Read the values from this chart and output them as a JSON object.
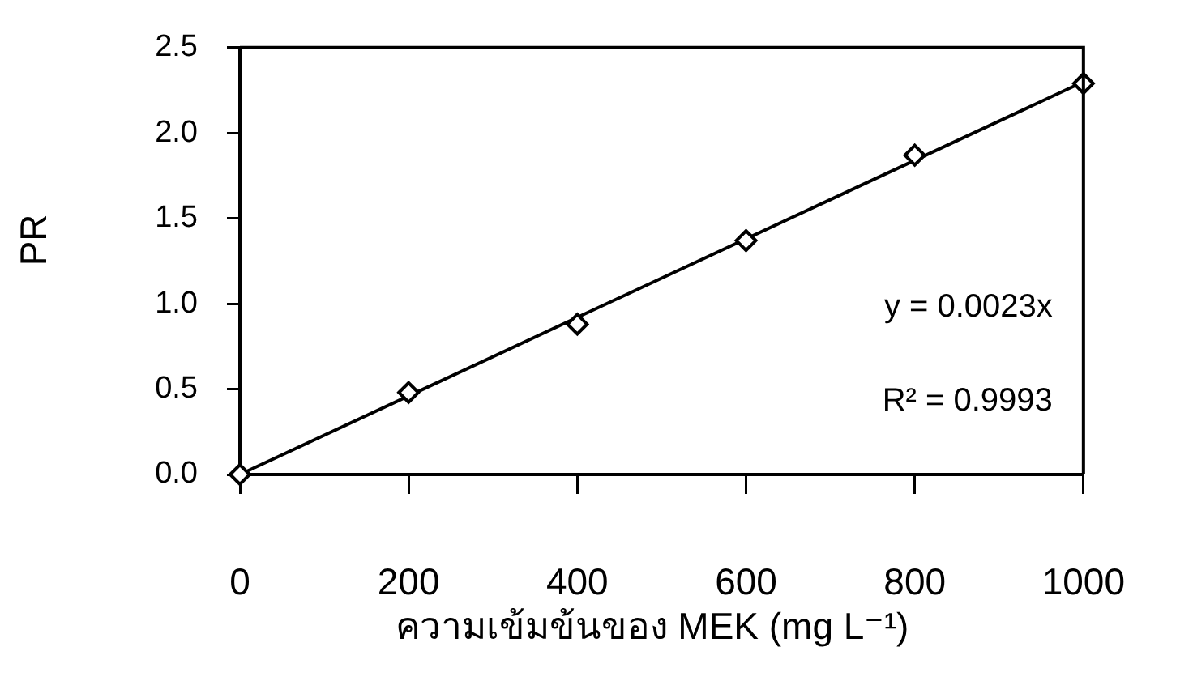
{
  "chart_data": {
    "type": "scatter",
    "xlabel": "ความเข้มข้นของ MEK (mg L⁻¹)",
    "ylabel": "PR",
    "x": [
      0,
      200,
      400,
      600,
      800,
      1000
    ],
    "series": [
      {
        "type": "scatter",
        "color": "#000000",
        "marker": "diamond",
        "values": [
          0,
          0.48,
          0.88,
          1.37,
          1.87,
          2.29
        ]
      },
      {
        "type": "line",
        "color": "#000000",
        "marker": "none",
        "line_style": "solid",
        "x": [
          0,
          1000
        ],
        "values": [
          0,
          2.3
        ]
      }
    ],
    "xlim": [
      0,
      1000
    ],
    "xticks": [
      0,
      200,
      400,
      600,
      800,
      1000
    ],
    "ylim": [
      0,
      2.5
    ],
    "yticks": [
      {
        "value": 0,
        "label": "0.0"
      },
      0.5,
      {
        "value": 1,
        "label": "1.0"
      },
      1.5,
      {
        "value": 2,
        "label": "2.0"
      },
      2.5
    ],
    "annotations": [
      "y = 0.0023x",
      "R² = 0.9993"
    ]
  }
}
